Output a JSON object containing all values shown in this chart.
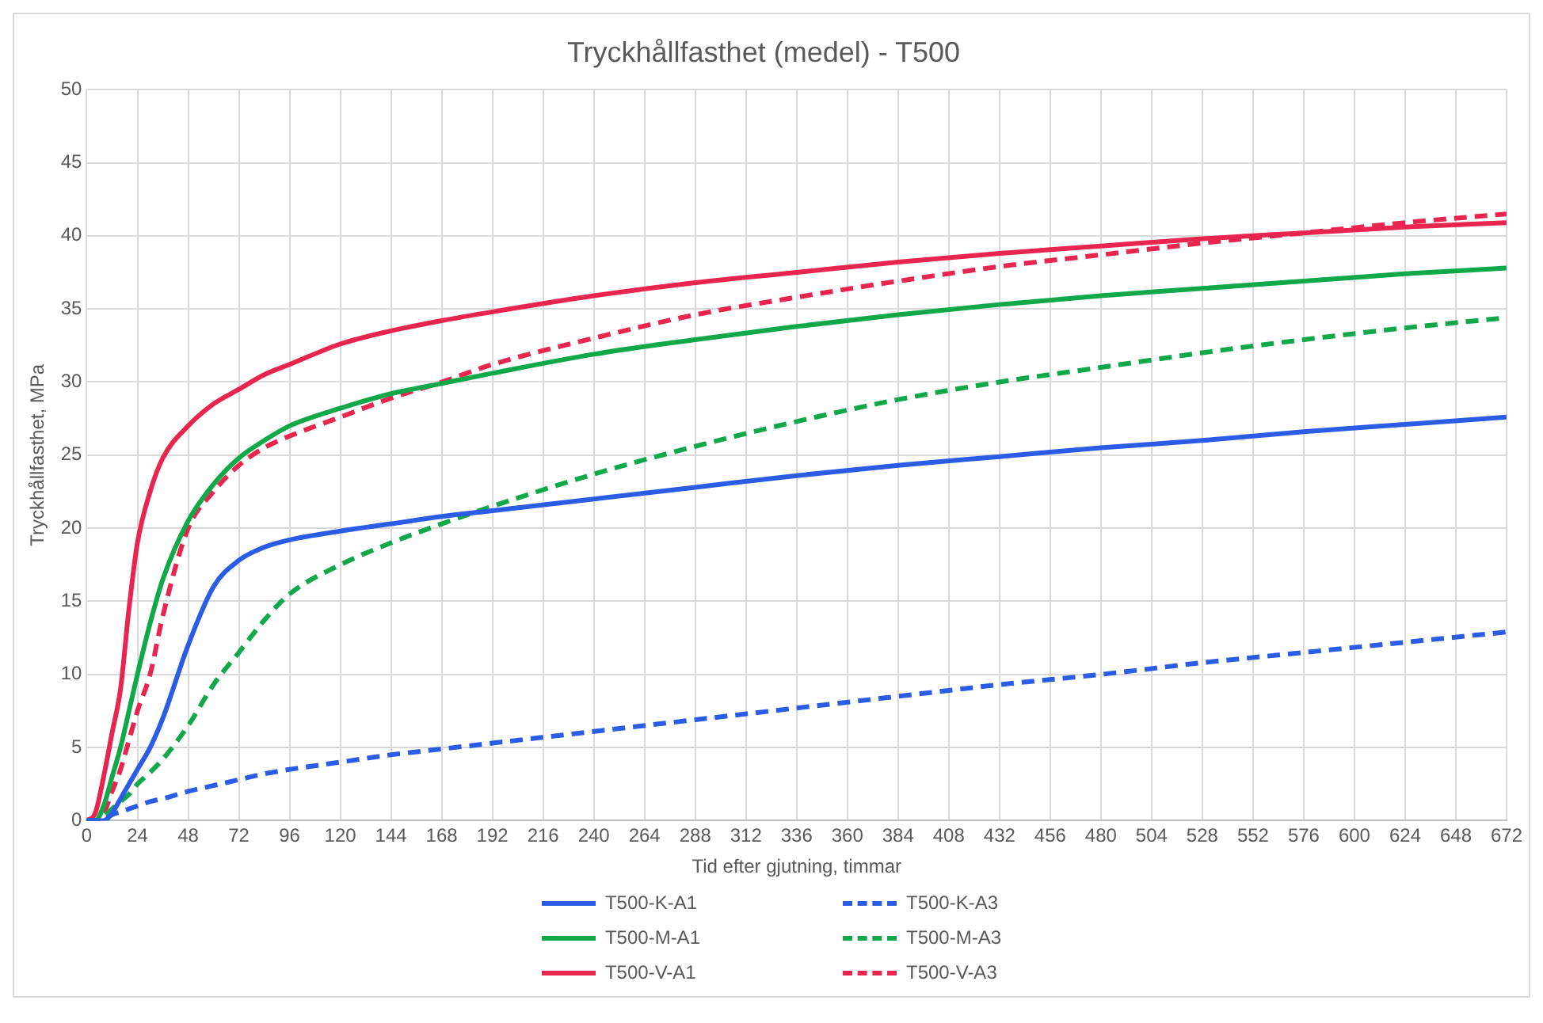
{
  "chart_data": {
    "type": "line",
    "title": "Tryckhållfasthet (medel) - T500",
    "xlabel": "Tid efter gjutning, timmar",
    "ylabel": "Tryckhållfasthet, MPa",
    "x": [
      0,
      4,
      8,
      12,
      16,
      20,
      24,
      30,
      36,
      48,
      60,
      72,
      84,
      96,
      120,
      144,
      168,
      192,
      240,
      288,
      336,
      384,
      432,
      480,
      528,
      576,
      624,
      672
    ],
    "xlim": [
      0,
      672
    ],
    "xticks": [
      0,
      24,
      48,
      72,
      96,
      120,
      144,
      168,
      192,
      216,
      240,
      264,
      288,
      312,
      336,
      360,
      384,
      408,
      432,
      456,
      480,
      504,
      528,
      552,
      576,
      600,
      624,
      648,
      672
    ],
    "ylim": [
      0,
      50
    ],
    "yticks": [
      0,
      5,
      10,
      15,
      20,
      25,
      30,
      35,
      40,
      45,
      50
    ],
    "grid": true,
    "legend": "bottom",
    "marker": "none",
    "series": [
      {
        "name": "T500-K-A1",
        "color": "#2b5ce6",
        "line_style": "solid",
        "values": [
          0,
          0,
          0,
          0.5,
          1.5,
          2.5,
          3.5,
          5,
          7,
          12,
          16,
          17.8,
          18.7,
          19.2,
          19.8,
          20.3,
          20.8,
          21.2,
          22,
          22.8,
          23.6,
          24.3,
          24.9,
          25.5,
          26,
          26.6,
          27.1,
          27.6
        ]
      },
      {
        "name": "T500-K-A3",
        "color": "#2b5ce6",
        "line_style": "dashed",
        "values": [
          0,
          0,
          0.1,
          0.4,
          0.6,
          0.8,
          1,
          1.3,
          1.5,
          2,
          2.4,
          2.8,
          3.2,
          3.5,
          4,
          4.5,
          4.9,
          5.3,
          6.1,
          6.9,
          7.7,
          8.5,
          9.3,
          10,
          10.8,
          11.5,
          12.2,
          12.9
        ]
      },
      {
        "name": "T500-M-A1",
        "color": "#11a84a",
        "line_style": "solid",
        "values": [
          0,
          0,
          1,
          3,
          5,
          7.5,
          10,
          13.5,
          16.5,
          20.5,
          23,
          24.8,
          26,
          27,
          28.2,
          29.2,
          29.9,
          30.6,
          31.9,
          32.9,
          33.8,
          34.6,
          35.3,
          35.9,
          36.4,
          36.9,
          37.4,
          37.8
        ]
      },
      {
        "name": "T500-M-A3",
        "color": "#11a84a",
        "line_style": "dashed",
        "values": [
          0,
          0,
          0.3,
          0.8,
          1.3,
          1.8,
          2.5,
          3.3,
          4.2,
          6.5,
          9.3,
          11.5,
          13.7,
          15.5,
          17.5,
          19,
          20.3,
          21.5,
          23.7,
          25.6,
          27.3,
          28.8,
          30,
          31,
          32,
          32.9,
          33.7,
          34.4
        ]
      },
      {
        "name": "T500-V-A1",
        "color": "#e8254f",
        "line_style": "solid",
        "values": [
          0,
          0.5,
          3,
          6,
          9,
          14.5,
          19,
          22.5,
          24.8,
          27,
          28.5,
          29.5,
          30.5,
          31.2,
          32.6,
          33.5,
          34.2,
          34.8,
          35.9,
          36.8,
          37.5,
          38.2,
          38.8,
          39.3,
          39.8,
          40.2,
          40.6,
          40.9
        ]
      },
      {
        "name": "T500-V-A3",
        "color": "#e8254f",
        "line_style": "dashed",
        "values": [
          0,
          0,
          0.5,
          2,
          3.5,
          5.5,
          7.5,
          10,
          14,
          20,
          22.5,
          24.3,
          25.5,
          26.3,
          27.6,
          28.9,
          30,
          31.2,
          33,
          34.6,
          35.8,
          36.9,
          37.9,
          38.7,
          39.5,
          40.2,
          40.9,
          41.5
        ]
      }
    ]
  }
}
